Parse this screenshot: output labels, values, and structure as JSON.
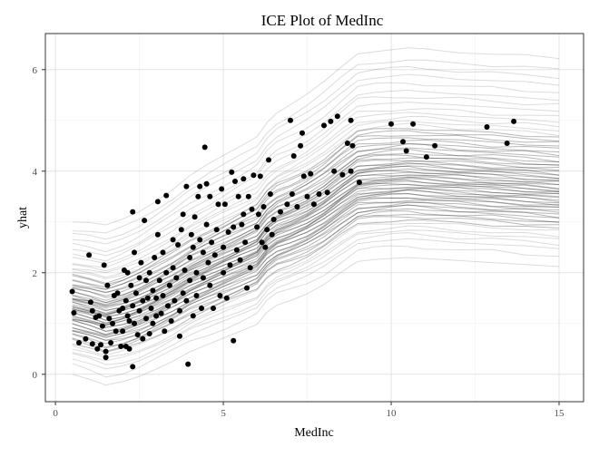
{
  "chart_data": {
    "type": "line",
    "title": "ICE Plot of MedInc",
    "xlabel": "MedInc",
    "ylabel": "yhat",
    "xlim": [
      -0.3,
      15.73
    ],
    "ylim": [
      -0.54,
      6.71
    ],
    "xticks": [
      0,
      5,
      10,
      15
    ],
    "yticks": [
      0,
      2,
      4,
      6
    ],
    "grid": true,
    "legend": "none",
    "line_color": "#000000",
    "point_color": "#000000",
    "average_curve": {
      "x": [
        0.5,
        1.0,
        1.5,
        2.0,
        2.5,
        3.0,
        3.5,
        4.0,
        4.5,
        5.0,
        5.5,
        6.0,
        6.3,
        6.6,
        7.0,
        7.5,
        8.0,
        8.5,
        9.0,
        9.5,
        10.0,
        10.5,
        11.0,
        12.0,
        13.0,
        14.0,
        15.0
      ],
      "y": [
        1.3,
        1.22,
        1.12,
        1.2,
        1.32,
        1.48,
        1.65,
        1.85,
        2.0,
        2.15,
        2.3,
        2.45,
        2.7,
        2.85,
        2.95,
        3.1,
        3.3,
        3.55,
        3.78,
        3.82,
        3.84,
        3.86,
        3.84,
        3.8,
        3.76,
        3.72,
        3.68
      ]
    },
    "ice_offsets": [
      -1.3,
      -1.12,
      -1.0,
      -0.92,
      -0.85,
      -0.8,
      -0.72,
      -0.68,
      -0.62,
      -0.58,
      -0.55,
      -0.5,
      -0.47,
      -0.44,
      -0.41,
      -0.38,
      -0.35,
      -0.32,
      -0.3,
      -0.27,
      -0.25,
      -0.22,
      -0.2,
      -0.18,
      -0.15,
      -0.13,
      -0.1,
      -0.08,
      -0.06,
      -0.04,
      -0.02,
      0.0,
      0.02,
      0.04,
      0.06,
      0.08,
      0.1,
      0.12,
      0.14,
      0.16,
      0.18,
      0.2,
      0.22,
      0.25,
      0.28,
      0.3,
      0.33,
      0.36,
      0.4,
      0.43,
      0.46,
      0.5,
      0.54,
      0.58,
      0.62,
      0.66,
      0.7,
      0.75,
      0.8,
      0.86,
      0.92,
      1.0,
      1.08,
      1.15,
      1.25,
      1.35,
      1.45,
      1.55,
      1.7
    ],
    "points": [
      [
        0.5,
        1.63
      ],
      [
        0.55,
        1.21
      ],
      [
        0.7,
        0.62
      ],
      [
        0.9,
        0.7
      ],
      [
        1.0,
        2.35
      ],
      [
        1.05,
        1.42
      ],
      [
        1.1,
        1.25
      ],
      [
        1.1,
        0.6
      ],
      [
        1.2,
        1.12
      ],
      [
        1.25,
        0.5
      ],
      [
        1.3,
        1.15
      ],
      [
        1.35,
        0.58
      ],
      [
        1.4,
        0.95
      ],
      [
        1.45,
        2.15
      ],
      [
        1.5,
        0.45
      ],
      [
        1.5,
        0.33
      ],
      [
        1.55,
        1.75
      ],
      [
        1.6,
        1.1
      ],
      [
        1.65,
        0.62
      ],
      [
        1.7,
        1.0
      ],
      [
        1.75,
        1.55
      ],
      [
        1.8,
        0.85
      ],
      [
        1.85,
        1.6
      ],
      [
        1.9,
        1.25
      ],
      [
        1.95,
        0.55
      ],
      [
        2.0,
        1.3
      ],
      [
        2.0,
        0.85
      ],
      [
        2.05,
        2.05
      ],
      [
        2.1,
        1.45
      ],
      [
        2.1,
        0.55
      ],
      [
        2.15,
        1.15
      ],
      [
        2.15,
        2.0
      ],
      [
        2.2,
        0.5
      ],
      [
        2.2,
        1.05
      ],
      [
        2.25,
        1.75
      ],
      [
        2.3,
        3.2
      ],
      [
        2.3,
        1.35
      ],
      [
        2.3,
        0.15
      ],
      [
        2.35,
        2.4
      ],
      [
        2.35,
        1.0
      ],
      [
        2.4,
        1.6
      ],
      [
        2.45,
        0.78
      ],
      [
        2.5,
        1.25
      ],
      [
        2.5,
        1.9
      ],
      [
        2.55,
        2.2
      ],
      [
        2.6,
        1.45
      ],
      [
        2.6,
        0.7
      ],
      [
        2.65,
        3.03
      ],
      [
        2.7,
        1.1
      ],
      [
        2.7,
        1.85
      ],
      [
        2.75,
        1.5
      ],
      [
        2.8,
        2.0
      ],
      [
        2.8,
        0.8
      ],
      [
        2.85,
        1.3
      ],
      [
        2.9,
        1.65
      ],
      [
        2.9,
        1.0
      ],
      [
        2.95,
        2.3
      ],
      [
        3.0,
        1.5
      ],
      [
        3.0,
        1.15
      ],
      [
        3.05,
        2.75
      ],
      [
        3.05,
        3.4
      ],
      [
        3.1,
        1.85
      ],
      [
        3.15,
        1.2
      ],
      [
        3.2,
        2.4
      ],
      [
        3.2,
        1.55
      ],
      [
        3.25,
        0.85
      ],
      [
        3.3,
        3.52
      ],
      [
        3.3,
        2.0
      ],
      [
        3.35,
        1.35
      ],
      [
        3.4,
        1.75
      ],
      [
        3.45,
        1.05
      ],
      [
        3.5,
        2.1
      ],
      [
        3.5,
        2.65
      ],
      [
        3.55,
        1.45
      ],
      [
        3.6,
        1.9
      ],
      [
        3.65,
        2.55
      ],
      [
        3.7,
        1.25
      ],
      [
        3.7,
        0.75
      ],
      [
        3.75,
        2.85
      ],
      [
        3.8,
        3.15
      ],
      [
        3.8,
        1.6
      ],
      [
        3.85,
        2.05
      ],
      [
        3.9,
        3.7
      ],
      [
        3.9,
        1.45
      ],
      [
        3.95,
        0.2
      ],
      [
        4.0,
        2.3
      ],
      [
        4.0,
        1.85
      ],
      [
        4.05,
        2.75
      ],
      [
        4.1,
        1.15
      ],
      [
        4.1,
        2.5
      ],
      [
        4.15,
        3.1
      ],
      [
        4.2,
        2.0
      ],
      [
        4.2,
        1.55
      ],
      [
        4.25,
        3.5
      ],
      [
        4.3,
        2.65
      ],
      [
        4.3,
        3.7
      ],
      [
        4.35,
        1.3
      ],
      [
        4.4,
        2.4
      ],
      [
        4.4,
        1.9
      ],
      [
        4.45,
        4.47
      ],
      [
        4.5,
        2.95
      ],
      [
        4.5,
        3.75
      ],
      [
        4.55,
        2.2
      ],
      [
        4.6,
        1.75
      ],
      [
        4.6,
        3.5
      ],
      [
        4.65,
        2.6
      ],
      [
        4.7,
        1.3
      ],
      [
        4.75,
        2.35
      ],
      [
        4.8,
        2.85
      ],
      [
        4.85,
        3.35
      ],
      [
        4.9,
        1.55
      ],
      [
        4.95,
        3.65
      ],
      [
        5.0,
        2.5
      ],
      [
        5.0,
        2.0
      ],
      [
        5.05,
        3.35
      ],
      [
        5.1,
        1.5
      ],
      [
        5.15,
        2.8
      ],
      [
        5.2,
        2.15
      ],
      [
        5.25,
        3.98
      ],
      [
        5.3,
        0.66
      ],
      [
        5.3,
        2.9
      ],
      [
        5.35,
        3.8
      ],
      [
        5.4,
        2.45
      ],
      [
        5.45,
        3.5
      ],
      [
        5.5,
        2.25
      ],
      [
        5.55,
        2.95
      ],
      [
        5.6,
        3.15
      ],
      [
        5.6,
        3.85
      ],
      [
        5.65,
        2.6
      ],
      [
        5.7,
        1.7
      ],
      [
        5.75,
        3.5
      ],
      [
        5.8,
        2.1
      ],
      [
        5.85,
        3.25
      ],
      [
        5.9,
        3.92
      ],
      [
        6.0,
        2.9
      ],
      [
        6.05,
        3.15
      ],
      [
        6.1,
        3.9
      ],
      [
        6.15,
        2.6
      ],
      [
        6.2,
        3.3
      ],
      [
        6.25,
        2.5
      ],
      [
        6.3,
        2.85
      ],
      [
        6.35,
        4.22
      ],
      [
        6.4,
        3.55
      ],
      [
        6.45,
        2.75
      ],
      [
        6.5,
        3.05
      ],
      [
        6.7,
        3.2
      ],
      [
        6.9,
        3.35
      ],
      [
        7.0,
        5.0
      ],
      [
        7.05,
        3.55
      ],
      [
        7.1,
        4.3
      ],
      [
        7.2,
        3.3
      ],
      [
        7.3,
        4.5
      ],
      [
        7.35,
        4.75
      ],
      [
        7.4,
        3.9
      ],
      [
        7.5,
        3.5
      ],
      [
        7.6,
        3.95
      ],
      [
        7.7,
        3.35
      ],
      [
        7.85,
        3.55
      ],
      [
        8.0,
        4.9
      ],
      [
        8.1,
        3.58
      ],
      [
        8.2,
        4.98
      ],
      [
        8.3,
        4.0
      ],
      [
        8.4,
        5.08
      ],
      [
        8.55,
        3.93
      ],
      [
        8.7,
        4.55
      ],
      [
        8.8,
        4.0
      ],
      [
        8.8,
        5.0
      ],
      [
        8.85,
        4.5
      ],
      [
        9.05,
        3.78
      ],
      [
        10.0,
        4.93
      ],
      [
        10.35,
        4.58
      ],
      [
        10.45,
        4.4
      ],
      [
        10.65,
        4.93
      ],
      [
        11.05,
        4.28
      ],
      [
        11.3,
        4.5
      ],
      [
        12.85,
        4.87
      ],
      [
        13.45,
        4.55
      ],
      [
        13.65,
        4.98
      ]
    ]
  }
}
